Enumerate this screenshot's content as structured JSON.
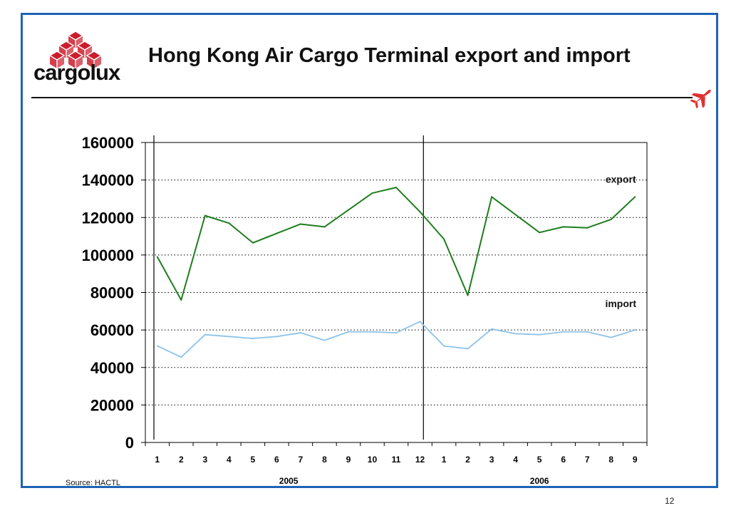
{
  "header": {
    "title": "Hong Kong Air Cargo Terminal export and import",
    "logo_text": "cargolux"
  },
  "footer": {
    "source": "Source: HACTL",
    "page_number": "12"
  },
  "colors": {
    "frame": "#1f64b4",
    "logo_red": "#cc1d2c",
    "plane_red": "#e03030",
    "export_line": "#1e7d1e",
    "import_line": "#8cc3ea"
  },
  "icons": {
    "logo": "cargolux-cubes-logo",
    "plane": "airplane-icon"
  },
  "chart_data": {
    "type": "line",
    "title": "",
    "categories": [
      "1",
      "2",
      "3",
      "4",
      "5",
      "6",
      "7",
      "8",
      "9",
      "10",
      "11",
      "12",
      "1",
      "2",
      "3",
      "4",
      "5",
      "6",
      "7",
      "8",
      "9"
    ],
    "year_groups": [
      {
        "label": "2005",
        "start_index": 0,
        "end_index": 11
      },
      {
        "label": "2006",
        "start_index": 12,
        "end_index": 20
      }
    ],
    "series": [
      {
        "name": "export",
        "values": [
          99000,
          76000,
          121000,
          117000,
          106500,
          111500,
          116500,
          115000,
          124000,
          133000,
          136000,
          123000,
          108500,
          78500,
          131000,
          121500,
          112000,
          115000,
          114500,
          119000,
          131000
        ]
      },
      {
        "name": "import",
        "values": [
          51500,
          45500,
          57500,
          56500,
          55500,
          56500,
          58500,
          54500,
          59000,
          59000,
          58500,
          64500,
          51500,
          50000,
          60500,
          58000,
          57500,
          59000,
          59000,
          56000,
          60000
        ]
      }
    ],
    "ylim": [
      0,
      160000
    ],
    "yticks": [
      0,
      20000,
      40000,
      60000,
      80000,
      100000,
      120000,
      140000,
      160000
    ],
    "xlabel": "",
    "ylabel": "",
    "grid": "horizontal dotted",
    "legend": "inline labels near series ends"
  }
}
